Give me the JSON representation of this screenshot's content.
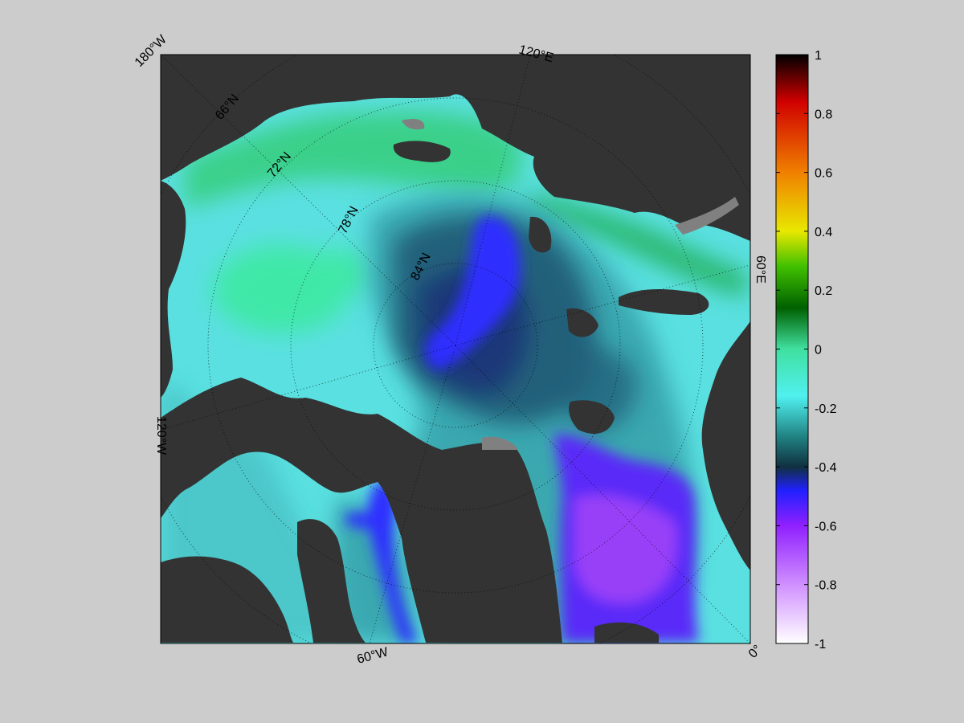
{
  "map": {
    "projection": "north-polar-stereographic",
    "land_color": "#333333",
    "offmap_color": "#808080",
    "background_color": "#cccccc",
    "longitude_labels": {
      "lon_180W": "180°W",
      "lon_120E": "120°E",
      "lon_60E": "60°E",
      "lon_120W": "120°W",
      "lon_60W": "60°W",
      "lon_0": "0°"
    },
    "latitude_labels": {
      "lat_66N": "66°N",
      "lat_72N": "72°N",
      "lat_78N": "78°N",
      "lat_84N": "84°N"
    }
  },
  "colorbar": {
    "range": [
      -1,
      1
    ],
    "ticks": [
      "1",
      "0.8",
      "0.6",
      "0.4",
      "0.2",
      "0",
      "-0.2",
      "-0.4",
      "-0.6",
      "-0.8",
      "-1"
    ],
    "tick_values": [
      1,
      0.8,
      0.6,
      0.4,
      0.2,
      0,
      -0.2,
      -0.4,
      -0.6,
      -0.8,
      -1
    ],
    "colors": {
      "max": "#000000",
      "upper_mid": "#d00000",
      "orange": "#f08000",
      "yellow": "#e8e800",
      "green": "#40c000",
      "dark_green": "#006000",
      "zero": "#40e0a0",
      "cyan": "#50f0f0",
      "teal": "#208080",
      "dark_teal": "#103040",
      "blue": "#2020ff",
      "violet": "#9020ff",
      "lavender": "#d090ff",
      "min": "#ffffff"
    }
  },
  "field_colors": {
    "cyan_ice": "#5ae0e0",
    "light_green": "#40e8a8",
    "green_coast": "#2ab870",
    "dark_green_coast": "#2a9a40",
    "teal": "#3aa8b0",
    "deep_teal": "#20607a",
    "navy": "#1a3878",
    "blue": "#2d2dff",
    "purple": "#8030f0",
    "violet_light": "#9840f8"
  }
}
